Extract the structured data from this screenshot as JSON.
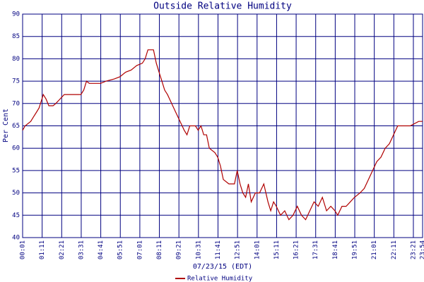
{
  "chart_data": {
    "type": "line",
    "title": "Outside Relative Humidity",
    "xlabel": "07/23/15 (EDT)",
    "ylabel": "Per Cent",
    "xlim": [
      1,
      1434
    ],
    "ylim": [
      40,
      90
    ],
    "yticks": [
      40,
      45,
      50,
      55,
      60,
      65,
      70,
      75,
      80,
      85,
      90
    ],
    "xticks": [
      {
        "value": 1,
        "label": "00:01"
      },
      {
        "value": 71,
        "label": "01:11"
      },
      {
        "value": 141,
        "label": "02:21"
      },
      {
        "value": 211,
        "label": "03:31"
      },
      {
        "value": 281,
        "label": "04:41"
      },
      {
        "value": 351,
        "label": "05:51"
      },
      {
        "value": 421,
        "label": "07:01"
      },
      {
        "value": 491,
        "label": "08:11"
      },
      {
        "value": 561,
        "label": "09:21"
      },
      {
        "value": 631,
        "label": "10:31"
      },
      {
        "value": 701,
        "label": "11:41"
      },
      {
        "value": 771,
        "label": "12:51"
      },
      {
        "value": 841,
        "label": "14:01"
      },
      {
        "value": 911,
        "label": "15:11"
      },
      {
        "value": 981,
        "label": "16:21"
      },
      {
        "value": 1051,
        "label": "17:31"
      },
      {
        "value": 1121,
        "label": "18:41"
      },
      {
        "value": 1191,
        "label": "19:51"
      },
      {
        "value": 1261,
        "label": "21:01"
      },
      {
        "value": 1331,
        "label": "22:11"
      },
      {
        "value": 1401,
        "label": "23:21"
      },
      {
        "value": 1434,
        "label": "23:54"
      }
    ],
    "grid": true,
    "series": [
      {
        "name": "Relative Humidity",
        "color": "#b00000",
        "x": [
          1,
          10,
          30,
          40,
          50,
          60,
          70,
          75,
          85,
          95,
          110,
          120,
          135,
          150,
          180,
          210,
          220,
          230,
          240,
          260,
          280,
          300,
          330,
          350,
          370,
          390,
          410,
          430,
          440,
          450,
          470,
          480,
          490,
          500,
          510,
          520,
          535,
          550,
          565,
          580,
          590,
          600,
          620,
          630,
          640,
          650,
          660,
          670,
          690,
          700,
          710,
          720,
          740,
          760,
          770,
          780,
          790,
          800,
          810,
          820,
          835,
          850,
          865,
          880,
          890,
          900,
          910,
          925,
          940,
          955,
          970,
          985,
          1000,
          1015,
          1030,
          1045,
          1060,
          1075,
          1090,
          1105,
          1120,
          1130,
          1145,
          1160,
          1175,
          1190,
          1210,
          1225,
          1240,
          1255,
          1270,
          1285,
          1300,
          1315,
          1330,
          1345,
          1365,
          1390,
          1420,
          1434
        ],
        "values": [
          64,
          65,
          66,
          67,
          68,
          69,
          71,
          72,
          71,
          69.5,
          69.5,
          70,
          71,
          72,
          72,
          72,
          73,
          75,
          74.5,
          74.5,
          74.5,
          75,
          75.5,
          76,
          77,
          77.5,
          78.5,
          79,
          80,
          82,
          82,
          79,
          77,
          75,
          73,
          72,
          70,
          68,
          66,
          64,
          63,
          65,
          65,
          64,
          65,
          63,
          63,
          60,
          59,
          58,
          56,
          53,
          52,
          52,
          55,
          52,
          50,
          49,
          52,
          48,
          50,
          50,
          52,
          48,
          46,
          48,
          47,
          45,
          46,
          44,
          45,
          47,
          45,
          44,
          46,
          48,
          47,
          49,
          46,
          47,
          46,
          45,
          47,
          47,
          48,
          49,
          50,
          51,
          53,
          55,
          57,
          58,
          60,
          61,
          63,
          65,
          65,
          65,
          66,
          66
        ]
      }
    ]
  }
}
